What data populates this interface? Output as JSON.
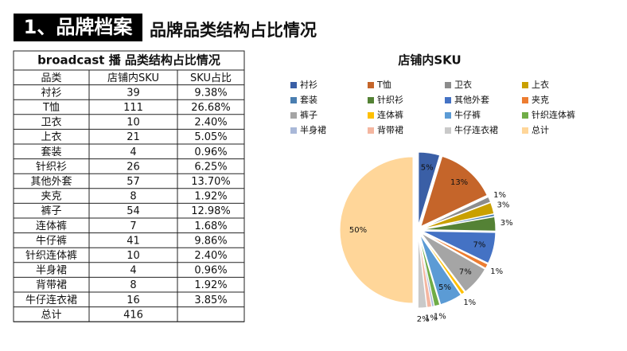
{
  "header": {
    "title": "1、品牌档案",
    "subtitle": "品牌品类结构占比情况"
  },
  "table": {
    "title": "broadcast 播 品类结构占比情况",
    "columns": [
      "品类",
      "店铺内SKU",
      "SKU占比"
    ],
    "rows": [
      [
        "衬衫",
        39,
        "9.38%"
      ],
      [
        "T恤",
        111,
        "26.68%"
      ],
      [
        "卫衣",
        10,
        "2.40%"
      ],
      [
        "上衣",
        21,
        "5.05%"
      ],
      [
        "套装",
        4,
        "0.96%"
      ],
      [
        "针织衫",
        26,
        "6.25%"
      ],
      [
        "其他外套",
        57,
        "13.70%"
      ],
      [
        "夹克",
        8,
        "1.92%"
      ],
      [
        "裤子",
        54,
        "12.98%"
      ],
      [
        "连体裤",
        7,
        "1.68%"
      ],
      [
        "牛仔裤",
        41,
        "9.86%"
      ],
      [
        "针织连体裤",
        10,
        "2.40%"
      ],
      [
        "半身裙",
        4,
        "0.96%"
      ],
      [
        "背带裙",
        8,
        "1.92%"
      ],
      [
        "牛仔连衣裙",
        16,
        "3.85%"
      ],
      [
        "总计",
        416
      ]
    ]
  },
  "chart_data": {
    "type": "pie",
    "title": "店铺内SKU",
    "categories": [
      "衬衫",
      "T恤",
      "卫衣",
      "上衣",
      "套装",
      "针织衫",
      "其他外套",
      "夹克",
      "裤子",
      "连体裤",
      "牛仔裤",
      "针织连体裤",
      "半身裙",
      "背带裙",
      "牛仔连衣裙",
      "总计"
    ],
    "values": [
      4.7,
      13.3,
      1.2,
      2.5,
      0.5,
      3.1,
      6.9,
      1.0,
      6.5,
      0.8,
      4.9,
      1.2,
      0.5,
      1.0,
      1.9,
      50
    ],
    "value_labels": [
      "5%",
      "13%",
      "1%",
      "3%",
      null,
      "3%",
      "7%",
      "1%",
      "7%",
      "1%",
      "5%",
      "1%",
      null,
      "1%",
      "2%",
      "50%"
    ],
    "colors": [
      "#3a5fa6",
      "#c5652a",
      "#8c8c8c",
      "#c9a000",
      "#4a7eb0",
      "#548235",
      "#4472c4",
      "#ed7d31",
      "#a5a5a5",
      "#ffc000",
      "#5b9bd5",
      "#70ad47",
      "#a9b8d8",
      "#f4b6a0",
      "#c9c9c9",
      "#ffd699"
    ],
    "legend": "top"
  }
}
